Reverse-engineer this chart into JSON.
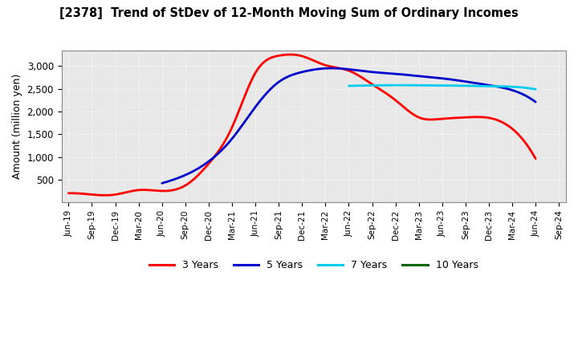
{
  "title": "[2378]  Trend of StDev of 12-Month Moving Sum of Ordinary Incomes",
  "ylabel": "Amount (million yen)",
  "background_color": "#ffffff",
  "plot_bg_color": "#e8e8e8",
  "grid_color": "#ffffff",
  "x_labels": [
    "Jun-19",
    "Sep-19",
    "Dec-19",
    "Mar-20",
    "Jun-20",
    "Sep-20",
    "Dec-20",
    "Mar-21",
    "Jun-21",
    "Sep-21",
    "Dec-21",
    "Mar-22",
    "Jun-22",
    "Sep-22",
    "Dec-22",
    "Mar-23",
    "Jun-23",
    "Sep-23",
    "Dec-23",
    "Mar-24",
    "Jun-24",
    "Sep-24"
  ],
  "series": {
    "3 Years": {
      "color": "#ff0000",
      "values": [
        200,
        170,
        170,
        270,
        250,
        370,
        850,
        1650,
        2850,
        3230,
        3220,
        3020,
        2900,
        2600,
        2250,
        1870,
        1840,
        1870,
        1860,
        1620,
        960,
        null
      ]
    },
    "5 Years": {
      "color": "#0000cc",
      "values": [
        null,
        null,
        null,
        null,
        420,
        600,
        900,
        1400,
        2100,
        2650,
        2870,
        2950,
        2930,
        2870,
        2830,
        2780,
        2730,
        2660,
        2580,
        2470,
        2210,
        null
      ]
    },
    "7 Years": {
      "color": "#00ccee",
      "values": [
        null,
        null,
        null,
        null,
        null,
        null,
        null,
        null,
        null,
        null,
        null,
        null,
        2565,
        2575,
        2580,
        2578,
        2572,
        2568,
        2558,
        2545,
        2490,
        null
      ]
    },
    "10 Years": {
      "color": "#006600",
      "values": [
        null,
        null,
        null,
        null,
        null,
        null,
        null,
        null,
        null,
        null,
        null,
        null,
        null,
        null,
        null,
        null,
        null,
        null,
        null,
        null,
        null,
        null
      ]
    }
  },
  "ylim": [
    0,
    3350
  ],
  "yticks": [
    500,
    1000,
    1500,
    2000,
    2500,
    3000
  ],
  "legend_labels": [
    "3 Years",
    "5 Years",
    "7 Years",
    "10 Years"
  ],
  "legend_colors": [
    "#ff0000",
    "#0000cc",
    "#00ccee",
    "#006600"
  ],
  "linewidth": 2.0
}
